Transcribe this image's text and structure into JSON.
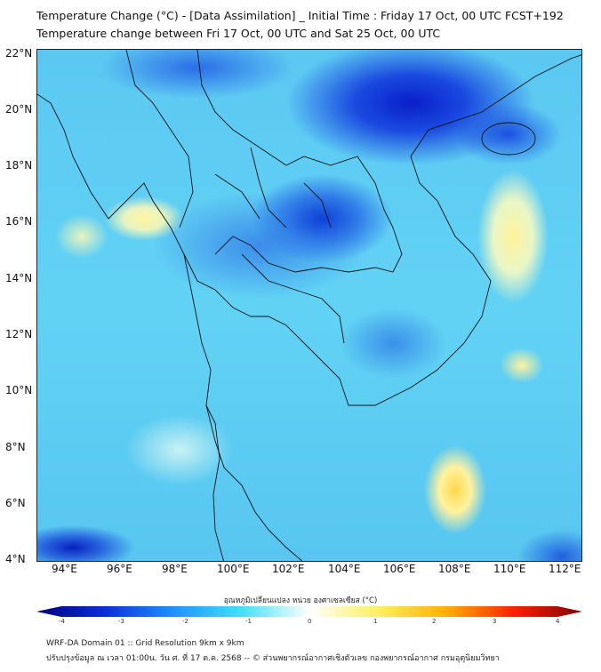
{
  "title": {
    "line1": "Temperature Change (°C) - [Data Assimilation] _ Initial Time : Friday 17 Oct, 00 UTC FCST+192",
    "line2": "Temperature change between Fri 17 Oct, 00 UTC and Sat 25 Oct, 00 UTC"
  },
  "map": {
    "lat_labels": [
      "22°N",
      "20°N",
      "18°N",
      "16°N",
      "14°N",
      "12°N",
      "10°N",
      "8°N",
      "6°N",
      "4°N"
    ],
    "lon_labels": [
      "94°E",
      "96°E",
      "98°E",
      "100°E",
      "102°E",
      "104°E",
      "106°E",
      "108°E",
      "110°E",
      "112°E"
    ]
  },
  "colorbar": {
    "label": "อุณหภูมิเปลี่ยนแปลง หน่วย องศาเซลเซียส (°C)",
    "ticks": [
      "-4",
      "-3",
      "-2",
      "-1",
      "0",
      "1",
      "2",
      "3",
      "4"
    ],
    "colors": [
      "#00007f",
      "#0a2fd8",
      "#1e90ff",
      "#40e0f8",
      "#ffffff",
      "#fff060",
      "#ffb000",
      "#ff2000",
      "#7f0000"
    ]
  },
  "footer": {
    "line1": "WRF-DA Domain 01 :: Grid Resolution 9km x 9km",
    "line2": "ปรับปรุงข้อมูล ณ เวลา 01:00น. วัน ศ. ที่ 17 ต.ค. 2568 -- © ส่วนพยากรณ์อากาศเชิงตัวเลข กองพยากรณ์อากาศ กรมอุตุนิยมวิทยา"
  }
}
